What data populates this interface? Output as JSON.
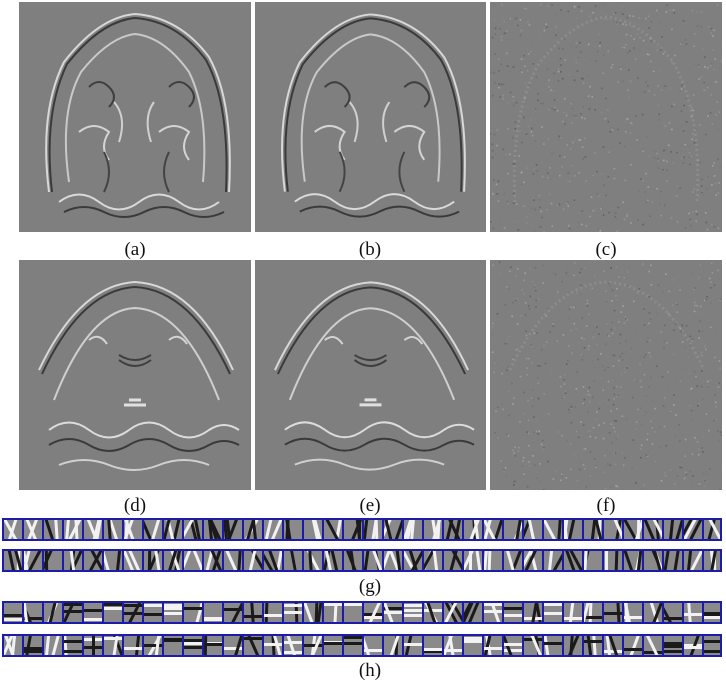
{
  "captions": {
    "a": "(a)",
    "b": "(b)",
    "c": "(c)",
    "d": "(d)",
    "e": "(e)",
    "f": "(f)",
    "g": "(g)",
    "h": "(h)"
  },
  "colors": {
    "panel_gray": "#7f7f7f",
    "strip_border": "#1c1ca8",
    "edge_light": "#d8d8d8",
    "edge_dark": "#3a3a3a"
  }
}
